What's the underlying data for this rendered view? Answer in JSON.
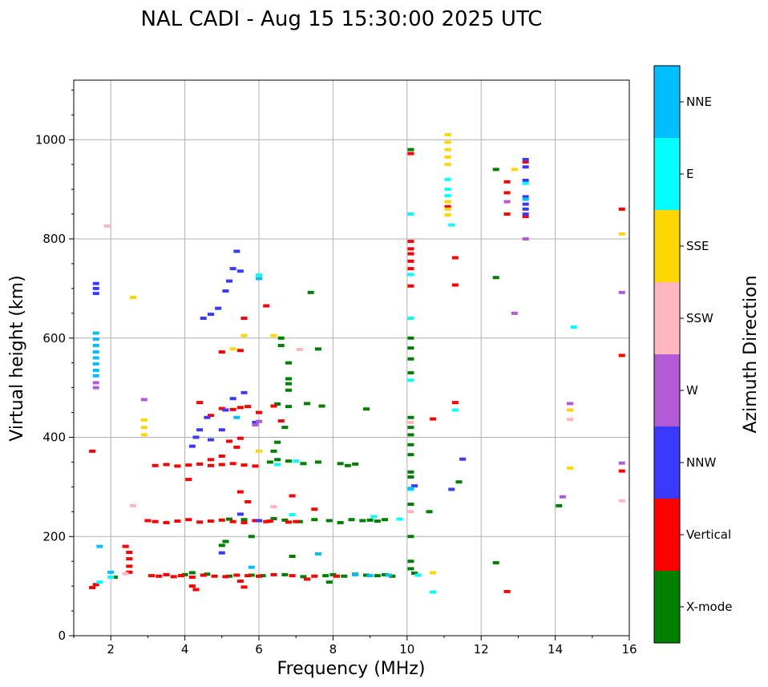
{
  "chart_data": {
    "type": "scatter",
    "title": "NAL CADI - Aug 15 15:30:00 2025 UTC",
    "xlabel": "Frequency (MHz)",
    "ylabel": "Virtual height (km)",
    "xlim": [
      1,
      16
    ],
    "ylim": [
      0,
      1120
    ],
    "xticks": [
      2,
      4,
      6,
      8,
      10,
      12,
      14,
      16
    ],
    "yticks": [
      0,
      200,
      400,
      600,
      800,
      1000
    ],
    "grid": true,
    "colorbar": {
      "label": "Azimuth Direction",
      "categories": [
        {
          "name": "X-mode",
          "color": "#008000"
        },
        {
          "name": "Vertical",
          "color": "#ff0000"
        },
        {
          "name": "NNW",
          "color": "#3a3aff"
        },
        {
          "name": "W",
          "color": "#b35ad6"
        },
        {
          "name": "SSW",
          "color": "#ffb6c1"
        },
        {
          "name": "SSE",
          "color": "#ffd700"
        },
        {
          "name": "E",
          "color": "#00ffff"
        },
        {
          "name": "NNE",
          "color": "#00bfff"
        }
      ]
    },
    "series": [
      {
        "name": "X-mode",
        "points": [
          [
            2.1,
            118
          ],
          [
            4.0,
            123
          ],
          [
            4.2,
            127
          ],
          [
            4.6,
            124
          ],
          [
            5.2,
            120
          ],
          [
            5.8,
            122
          ],
          [
            6.1,
            121
          ],
          [
            6.7,
            123
          ],
          [
            7.2,
            119
          ],
          [
            7.8,
            121
          ],
          [
            8.0,
            123
          ],
          [
            8.3,
            120
          ],
          [
            8.6,
            124
          ],
          [
            8.9,
            122
          ],
          [
            9.2,
            121
          ],
          [
            9.4,
            123
          ],
          [
            9.6,
            120
          ],
          [
            10.2,
            126
          ],
          [
            7.9,
            108
          ],
          [
            5.2,
            235
          ],
          [
            5.6,
            234
          ],
          [
            6.0,
            232
          ],
          [
            6.4,
            236
          ],
          [
            6.7,
            233
          ],
          [
            7.1,
            230
          ],
          [
            7.5,
            234
          ],
          [
            7.9,
            232
          ],
          [
            8.2,
            228
          ],
          [
            8.5,
            234
          ],
          [
            8.8,
            232
          ],
          [
            9.0,
            233
          ],
          [
            9.2,
            231
          ],
          [
            9.4,
            234
          ],
          [
            5.0,
            182
          ],
          [
            5.1,
            190
          ],
          [
            5.8,
            200
          ],
          [
            6.3,
            350
          ],
          [
            6.5,
            355
          ],
          [
            6.8,
            352
          ],
          [
            7.2,
            347
          ],
          [
            7.6,
            350
          ],
          [
            8.2,
            347
          ],
          [
            8.4,
            343
          ],
          [
            8.6,
            346
          ],
          [
            6.4,
            372
          ],
          [
            6.5,
            390
          ],
          [
            6.7,
            420
          ],
          [
            6.6,
            600
          ],
          [
            6.6,
            585
          ],
          [
            6.8,
            550
          ],
          [
            6.8,
            518
          ],
          [
            6.8,
            508
          ],
          [
            6.8,
            495
          ],
          [
            6.5,
            467
          ],
          [
            6.8,
            462
          ],
          [
            7.3,
            468
          ],
          [
            7.7,
            463
          ],
          [
            8.9,
            457
          ],
          [
            7.4,
            692
          ],
          [
            7.6,
            578
          ],
          [
            10.1,
            980
          ],
          [
            10.1,
            600
          ],
          [
            10.1,
            580
          ],
          [
            10.1,
            558
          ],
          [
            10.1,
            530
          ],
          [
            10.1,
            440
          ],
          [
            10.1,
            420
          ],
          [
            10.1,
            405
          ],
          [
            10.1,
            385
          ],
          [
            10.1,
            365
          ],
          [
            10.1,
            330
          ],
          [
            10.1,
            320
          ],
          [
            10.1,
            265
          ],
          [
            10.1,
            200
          ],
          [
            10.1,
            150
          ],
          [
            10.1,
            135
          ],
          [
            10.6,
            250
          ],
          [
            11.4,
            310
          ],
          [
            12.4,
            940
          ],
          [
            12.4,
            722
          ],
          [
            12.4,
            147
          ],
          [
            14.1,
            262
          ],
          [
            6.9,
            160
          ]
        ]
      },
      {
        "name": "Vertical",
        "points": [
          [
            1.5,
            97
          ],
          [
            1.6,
            103
          ],
          [
            1.5,
            372
          ],
          [
            2.5,
            128
          ],
          [
            2.5,
            140
          ],
          [
            2.5,
            155
          ],
          [
            2.5,
            168
          ],
          [
            2.4,
            180
          ],
          [
            3.1,
            121
          ],
          [
            3.3,
            120
          ],
          [
            3.5,
            123
          ],
          [
            3.7,
            119
          ],
          [
            3.9,
            121
          ],
          [
            4.2,
            118
          ],
          [
            4.5,
            122
          ],
          [
            4.8,
            120
          ],
          [
            5.1,
            119
          ],
          [
            5.4,
            122
          ],
          [
            5.7,
            121
          ],
          [
            6.0,
            120
          ],
          [
            6.4,
            123
          ],
          [
            6.9,
            121
          ],
          [
            7.5,
            120
          ],
          [
            8.1,
            120
          ],
          [
            4.2,
            100
          ],
          [
            4.3,
            93
          ],
          [
            5.6,
            98
          ],
          [
            5.5,
            110
          ],
          [
            7.3,
            114
          ],
          [
            3.0,
            232
          ],
          [
            3.2,
            230
          ],
          [
            3.5,
            228
          ],
          [
            3.8,
            231
          ],
          [
            4.1,
            234
          ],
          [
            4.4,
            229
          ],
          [
            4.7,
            231
          ],
          [
            5.0,
            233
          ],
          [
            5.3,
            230
          ],
          [
            5.6,
            228
          ],
          [
            5.9,
            232
          ],
          [
            6.3,
            231
          ],
          [
            6.8,
            229
          ],
          [
            7.0,
            230
          ],
          [
            3.2,
            343
          ],
          [
            3.5,
            345
          ],
          [
            3.8,
            342
          ],
          [
            4.1,
            344
          ],
          [
            4.4,
            346
          ],
          [
            4.7,
            343
          ],
          [
            5.0,
            345
          ],
          [
            5.3,
            347
          ],
          [
            5.6,
            344
          ],
          [
            5.9,
            342
          ],
          [
            4.1,
            315
          ],
          [
            4.7,
            355
          ],
          [
            5.0,
            362
          ],
          [
            5.4,
            380
          ],
          [
            5.2,
            392
          ],
          [
            5.5,
            398
          ],
          [
            4.4,
            470
          ],
          [
            4.7,
            444
          ],
          [
            5.0,
            458
          ],
          [
            5.3,
            456
          ],
          [
            5.5,
            460
          ],
          [
            5.7,
            462
          ],
          [
            6.0,
            450
          ],
          [
            6.4,
            463
          ],
          [
            6.6,
            433
          ],
          [
            6.2,
            665
          ],
          [
            5.0,
            572
          ],
          [
            5.5,
            575
          ],
          [
            6.9,
            282
          ],
          [
            7.5,
            255
          ],
          [
            6.2,
            230
          ],
          [
            5.5,
            290
          ],
          [
            5.7,
            270
          ],
          [
            5.6,
            640
          ],
          [
            10.1,
            795
          ],
          [
            10.1,
            780
          ],
          [
            10.1,
            770
          ],
          [
            10.1,
            755
          ],
          [
            10.1,
            740
          ],
          [
            10.1,
            705
          ],
          [
            10.1,
            972
          ],
          [
            10.7,
            437
          ],
          [
            11.1,
            865
          ],
          [
            11.3,
            470
          ],
          [
            11.3,
            762
          ],
          [
            11.3,
            707
          ],
          [
            12.7,
            915
          ],
          [
            12.7,
            893
          ],
          [
            12.7,
            850
          ],
          [
            12.7,
            89
          ],
          [
            13.2,
            955
          ],
          [
            13.2,
            845
          ],
          [
            15.8,
            860
          ],
          [
            15.8,
            565
          ],
          [
            15.8,
            332
          ]
        ]
      },
      {
        "name": "NNW",
        "points": [
          [
            1.6,
            700
          ],
          [
            1.6,
            710
          ],
          [
            1.6,
            690
          ],
          [
            4.2,
            382
          ],
          [
            4.3,
            400
          ],
          [
            4.4,
            415
          ],
          [
            4.6,
            440
          ],
          [
            4.7,
            395
          ],
          [
            5.0,
            415
          ],
          [
            5.1,
            455
          ],
          [
            5.3,
            478
          ],
          [
            5.6,
            490
          ],
          [
            5.9,
            430
          ],
          [
            4.5,
            640
          ],
          [
            4.7,
            648
          ],
          [
            4.9,
            660
          ],
          [
            5.1,
            695
          ],
          [
            5.2,
            715
          ],
          [
            5.3,
            740
          ],
          [
            5.4,
            775
          ],
          [
            5.5,
            735
          ],
          [
            5.0,
            167
          ],
          [
            5.5,
            245
          ],
          [
            6.0,
            232
          ],
          [
            10.2,
            302
          ],
          [
            11.2,
            295
          ],
          [
            11.5,
            356
          ],
          [
            13.2,
            960
          ],
          [
            13.2,
            945
          ],
          [
            13.2,
            918
          ],
          [
            13.2,
            885
          ],
          [
            13.2,
            870
          ],
          [
            13.2,
            860
          ],
          [
            13.2,
            850
          ]
        ]
      },
      {
        "name": "W",
        "points": [
          [
            1.6,
            510
          ],
          [
            1.6,
            500
          ],
          [
            2.9,
            476
          ],
          [
            5.9,
            425
          ],
          [
            6.0,
            432
          ],
          [
            13.2,
            800
          ],
          [
            12.9,
            650
          ],
          [
            14.2,
            280
          ],
          [
            14.4,
            468
          ],
          [
            15.8,
            348
          ],
          [
            15.8,
            692
          ],
          [
            12.7,
            875
          ]
        ]
      },
      {
        "name": "SSW",
        "points": [
          [
            1.9,
            826
          ],
          [
            2.4,
            125
          ],
          [
            2.6,
            262
          ],
          [
            7.1,
            577
          ],
          [
            6.4,
            260
          ],
          [
            14.4,
            436
          ],
          [
            15.8,
            272
          ],
          [
            10.1,
            250
          ],
          [
            10.1,
            430
          ]
        ]
      },
      {
        "name": "SSE",
        "points": [
          [
            2.6,
            682
          ],
          [
            2.9,
            405
          ],
          [
            2.9,
            420
          ],
          [
            2.9,
            435
          ],
          [
            5.6,
            605
          ],
          [
            6.4,
            605
          ],
          [
            5.3,
            578
          ],
          [
            6.0,
            372
          ],
          [
            11.1,
            1010
          ],
          [
            11.1,
            995
          ],
          [
            11.1,
            980
          ],
          [
            11.1,
            965
          ],
          [
            11.1,
            950
          ],
          [
            11.1,
            875
          ],
          [
            11.1,
            860
          ],
          [
            11.1,
            848
          ],
          [
            10.7,
            127
          ],
          [
            12.9,
            940
          ],
          [
            14.4,
            338
          ],
          [
            14.4,
            455
          ],
          [
            15.8,
            810
          ]
        ]
      },
      {
        "name": "E",
        "points": [
          [
            1.7,
            108
          ],
          [
            2.0,
            118
          ],
          [
            6.0,
            727
          ],
          [
            10.1,
            850
          ],
          [
            10.1,
            728
          ],
          [
            10.1,
            640
          ],
          [
            10.1,
            515
          ],
          [
            10.3,
            122
          ],
          [
            10.7,
            88
          ],
          [
            11.1,
            920
          ],
          [
            11.1,
            900
          ],
          [
            11.1,
            887
          ],
          [
            11.2,
            828
          ],
          [
            11.3,
            455
          ],
          [
            9.8,
            235
          ],
          [
            9.1,
            240
          ],
          [
            7.0,
            352
          ],
          [
            6.5,
            345
          ],
          [
            14.5,
            622
          ],
          [
            13.2,
            912
          ],
          [
            10.1,
            295
          ],
          [
            6.9,
            244
          ]
        ]
      },
      {
        "name": "NNE",
        "points": [
          [
            1.6,
            610
          ],
          [
            1.6,
            598
          ],
          [
            1.6,
            585
          ],
          [
            1.6,
            572
          ],
          [
            1.6,
            560
          ],
          [
            1.6,
            548
          ],
          [
            1.6,
            535
          ],
          [
            1.6,
            524
          ],
          [
            1.7,
            180
          ],
          [
            2.0,
            128
          ],
          [
            7.6,
            165
          ],
          [
            5.8,
            138
          ],
          [
            9.5,
            122
          ],
          [
            9.0,
            121
          ],
          [
            8.6,
            123
          ],
          [
            6.0,
            720
          ],
          [
            5.4,
            440
          ],
          [
            13.2,
            880
          ],
          [
            10.1,
            297
          ]
        ]
      }
    ]
  }
}
